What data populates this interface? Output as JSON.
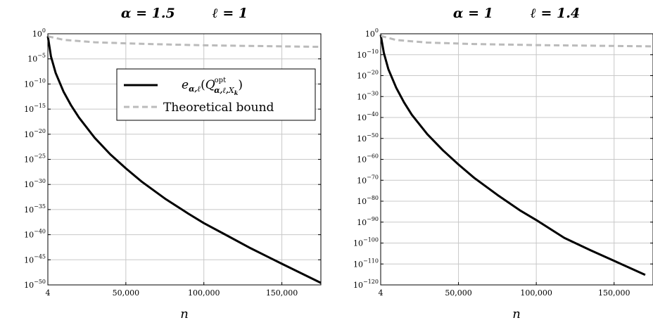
{
  "chart_data": [
    {
      "type": "line",
      "title": "α = 1.5        ℓ = 1",
      "xlabel": "n",
      "ylabel": "",
      "xlim": [
        4,
        175000
      ],
      "y_scale": "log",
      "ylim_exponent": [
        -50,
        0
      ],
      "x_ticks": [
        4,
        50000,
        100000,
        150000
      ],
      "x_tick_labels": [
        "4",
        "50,000",
        "100,000",
        "150,000"
      ],
      "y_tick_exponents": [
        0,
        -5,
        -10,
        -15,
        -20,
        -25,
        -30,
        -35,
        -40,
        -45,
        -50
      ],
      "y_tick_labels": [
        "10",
        "10",
        "10",
        "10",
        "10",
        "10",
        "10",
        "10",
        "10",
        "10",
        "10"
      ],
      "y_tick_sup": [
        "0",
        "−5",
        "−10",
        "−15",
        "−20",
        "−25",
        "−30",
        "−35",
        "−40",
        "−45",
        "−50"
      ],
      "grid": true,
      "legend_position": "top-right",
      "legend": [
        {
          "label": "e_{α,ℓ}(Q^{opt}_{α,ℓ,X_k})",
          "style": "solid",
          "color": "#000000"
        },
        {
          "label": "Theoretical bound",
          "style": "dashed",
          "color": "#bbbbbb"
        }
      ],
      "series": [
        {
          "style": "solid",
          "color": "#000000",
          "x": [
            4,
            2000,
            5000,
            10000,
            15000,
            20000,
            30000,
            40000,
            50000,
            60000,
            75000,
            90000,
            100000,
            115000,
            130000,
            150000,
            175000
          ],
          "log10_y": [
            -0.5,
            -4.5,
            -7.8,
            -11.5,
            -14.3,
            -16.7,
            -20.7,
            -24.0,
            -26.8,
            -29.4,
            -32.8,
            -35.8,
            -37.7,
            -40.2,
            -42.7,
            -45.8,
            -49.6
          ]
        },
        {
          "style": "dashed",
          "color": "#bbbbbb",
          "x": [
            4,
            10000,
            30000,
            60000,
            100000,
            150000,
            175000
          ],
          "log10_y": [
            -0.5,
            -1.2,
            -1.7,
            -2.0,
            -2.3,
            -2.5,
            -2.6
          ]
        }
      ]
    },
    {
      "type": "line",
      "title": "α = 1        ℓ = 1.4",
      "xlabel": "n",
      "ylabel": "",
      "xlim": [
        4,
        175000
      ],
      "y_scale": "log",
      "ylim_exponent": [
        -120,
        0
      ],
      "x_ticks": [
        4,
        50000,
        100000,
        150000
      ],
      "x_tick_labels": [
        "4",
        "50,000",
        "100,000",
        "150,000"
      ],
      "y_tick_exponents": [
        0,
        -10,
        -20,
        -30,
        -40,
        -50,
        -60,
        -70,
        -80,
        -90,
        -100,
        -110,
        -120
      ],
      "y_tick_labels": [
        "10",
        "10",
        "10",
        "10",
        "10",
        "10",
        "10",
        "10",
        "10",
        "10",
        "10",
        "10",
        "10"
      ],
      "y_tick_sup": [
        "0",
        "−10",
        "−20",
        "−30",
        "−40",
        "−50",
        "−60",
        "−70",
        "−80",
        "−90",
        "−100",
        "−110",
        "−120"
      ],
      "grid": true,
      "series": [
        {
          "style": "solid",
          "color": "#000000",
          "x": [
            4,
            2000,
            5000,
            10000,
            15000,
            20000,
            30000,
            40000,
            50000,
            60000,
            75000,
            90000,
            100000,
            118000,
            135000,
            150000,
            170000
          ],
          "log10_y": [
            -0.5,
            -9.0,
            -17.0,
            -25.8,
            -32.8,
            -38.7,
            -48.0,
            -55.7,
            -62.5,
            -68.8,
            -77.0,
            -84.6,
            -89.0,
            -97.5,
            -103.5,
            -108.5,
            -115.2
          ]
        },
        {
          "style": "dashed",
          "color": "#bbbbbb",
          "x": [
            4,
            10000,
            30000,
            60000,
            100000,
            150000,
            175000
          ],
          "log10_y": [
            -1.0,
            -3.0,
            -4.2,
            -4.9,
            -5.4,
            -5.8,
            -6.0
          ]
        }
      ]
    }
  ]
}
